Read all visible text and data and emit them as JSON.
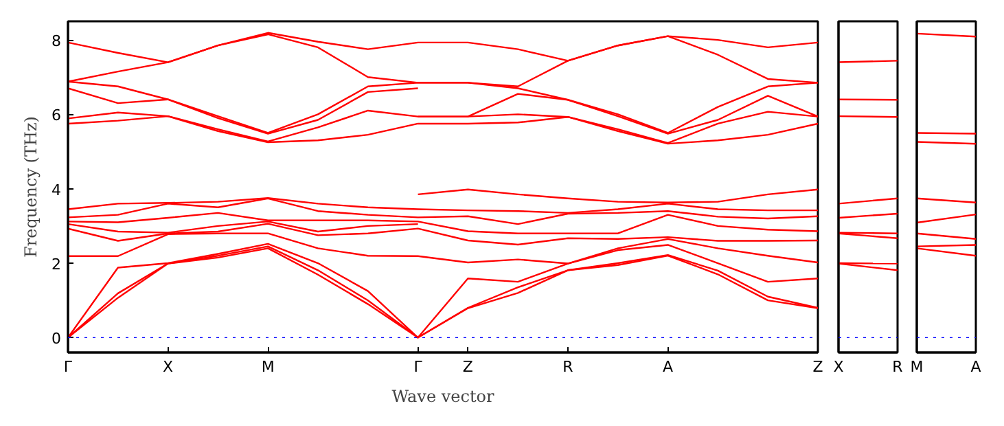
{
  "chart_data": [
    {
      "type": "line",
      "xlabel": "Wave vector",
      "ylabel": "Frequency (THz)",
      "ylim": [
        -0.4,
        8.5
      ],
      "categories": [
        "Γ",
        null,
        "X",
        null,
        "M",
        null,
        null,
        "Γ",
        "Z",
        null,
        "R",
        null,
        "A",
        null,
        null,
        "Z"
      ],
      "yticks": [
        0,
        2,
        4,
        6,
        8
      ],
      "grid": false,
      "line_style": "solid",
      "ref_lines": [
        {
          "axis": "y",
          "value": 0,
          "color": "#0000ff",
          "line_style": "dotted"
        }
      ],
      "series": [
        {
          "color": "#ff0000",
          "values": [
            0,
            1.07,
            1.99,
            2.15,
            2.4,
            1.69,
            0.9,
            0,
            0.79,
            1.2,
            1.81,
            1.95,
            2.2,
            1.7,
            1.0,
            0.79
          ]
        },
        {
          "color": "#ff0000",
          "values": [
            0,
            1.19,
            1.99,
            2.2,
            2.45,
            1.81,
            1.0,
            0,
            0.8,
            1.35,
            1.81,
            2.0,
            2.22,
            1.8,
            1.1,
            0.8
          ]
        },
        {
          "color": "#ff0000",
          "values": [
            0,
            1.88,
            2.0,
            2.25,
            2.52,
            2.0,
            1.25,
            0,
            1.59,
            1.5,
            1.99,
            2.35,
            2.49,
            2.0,
            1.5,
            1.59
          ]
        },
        {
          "color": "#ff0000",
          "values": [
            2.19,
            2.19,
            2.78,
            2.8,
            2.8,
            2.4,
            2.2,
            2.19,
            2.02,
            2.1,
            1.99,
            2.4,
            2.65,
            2.4,
            2.2,
            2.02
          ]
        },
        {
          "color": "#ff0000",
          "values": [
            2.93,
            2.6,
            2.8,
            2.85,
            3.06,
            2.75,
            2.8,
            2.93,
            2.61,
            2.5,
            2.67,
            2.65,
            2.7,
            2.6,
            2.6,
            2.61
          ]
        },
        {
          "color": "#ff0000",
          "values": [
            3.05,
            2.85,
            2.82,
            3.0,
            3.12,
            2.85,
            3.0,
            3.05,
            null,
            null,
            null,
            null,
            null,
            null,
            null,
            null
          ]
        },
        {
          "color": "#ff0000",
          "values": [
            3.12,
            3.1,
            3.22,
            3.35,
            3.15,
            3.15,
            3.15,
            3.12,
            2.86,
            2.8,
            2.8,
            2.8,
            3.3,
            3.0,
            2.9,
            2.86
          ]
        },
        {
          "color": "#ff0000",
          "values": [
            3.23,
            3.3,
            3.6,
            3.5,
            3.74,
            3.4,
            3.3,
            3.23,
            3.26,
            3.05,
            3.33,
            3.35,
            3.4,
            3.25,
            3.2,
            3.26
          ]
        },
        {
          "color": "#ff0000",
          "values": [
            3.45,
            3.6,
            3.62,
            3.65,
            3.75,
            3.6,
            3.5,
            3.45,
            3.42,
            3.4,
            3.35,
            3.45,
            3.6,
            3.45,
            3.42,
            3.42
          ]
        },
        {
          "color": "#ff0000",
          "values": [
            null,
            null,
            null,
            null,
            null,
            null,
            null,
            3.85,
            3.98,
            3.85,
            3.74,
            3.65,
            3.63,
            3.65,
            3.85,
            3.98
          ]
        },
        {
          "color": "#ff0000",
          "values": [
            5.75,
            5.83,
            5.95,
            5.55,
            5.25,
            5.3,
            5.45,
            5.75,
            5.75,
            5.78,
            5.93,
            5.55,
            5.21,
            5.3,
            5.45,
            5.75
          ]
        },
        {
          "color": "#ff0000",
          "values": [
            5.89,
            6.05,
            5.95,
            5.6,
            5.27,
            5.65,
            6.1,
            5.94,
            5.94,
            6.0,
            5.93,
            5.6,
            5.23,
            5.75,
            6.07,
            5.94
          ]
        },
        {
          "color": "#ff0000",
          "values": [
            6.7,
            6.3,
            6.4,
            5.9,
            5.48,
            5.85,
            6.6,
            6.7,
            null,
            null,
            null,
            null,
            null,
            null,
            null,
            null
          ]
        },
        {
          "color": "#ff0000",
          "values": [
            null,
            null,
            null,
            null,
            null,
            null,
            null,
            5.94,
            5.94,
            6.55,
            6.39,
            5.95,
            5.48,
            5.85,
            6.5,
            5.94
          ]
        },
        {
          "color": "#ff0000",
          "values": [
            6.88,
            6.75,
            6.4,
            5.95,
            5.5,
            6.0,
            6.75,
            6.85,
            6.85,
            6.7,
            6.39,
            6.0,
            5.5,
            6.2,
            6.75,
            6.85
          ]
        },
        {
          "color": "#ff0000",
          "values": [
            6.88,
            7.15,
            7.4,
            7.85,
            8.15,
            7.8,
            7.0,
            6.85,
            6.85,
            6.75,
            7.44,
            7.85,
            8.1,
            7.6,
            6.95,
            6.85
          ]
        },
        {
          "color": "#ff0000",
          "values": [
            7.93,
            7.65,
            7.4,
            7.85,
            8.19,
            7.95,
            7.75,
            7.93,
            7.93,
            7.75,
            7.44,
            7.85,
            8.1,
            8.0,
            7.8,
            7.93
          ]
        }
      ]
    },
    {
      "type": "line",
      "ylim": [
        -0.4,
        8.5
      ],
      "categories": [
        "X",
        "R"
      ],
      "tick_labels": "x",
      "line_style": "solid",
      "ref_lines": [
        {
          "axis": "y",
          "value": 0,
          "color": "#0000ff",
          "line_style": "dotted"
        }
      ],
      "series": [
        {
          "color": "#ff0000",
          "values": [
            1.99,
            1.81
          ]
        },
        {
          "color": "#ff0000",
          "values": [
            2.0,
            1.99
          ]
        },
        {
          "color": "#ff0000",
          "values": [
            2.8,
            2.67
          ]
        },
        {
          "color": "#ff0000",
          "values": [
            2.82,
            2.8
          ]
        },
        {
          "color": "#ff0000",
          "values": [
            3.22,
            3.33
          ]
        },
        {
          "color": "#ff0000",
          "values": [
            3.6,
            3.74
          ]
        },
        {
          "color": "#ff0000",
          "values": [
            5.95,
            5.93
          ]
        },
        {
          "color": "#ff0000",
          "values": [
            6.4,
            6.39
          ]
        },
        {
          "color": "#ff0000",
          "values": [
            7.4,
            7.44
          ]
        }
      ]
    },
    {
      "type": "line",
      "ylim": [
        -0.4,
        8.5
      ],
      "categories": [
        "M",
        "A"
      ],
      "tick_labels": "x",
      "line_style": "solid",
      "ref_lines": [
        {
          "axis": "y",
          "value": 0,
          "color": "#0000ff",
          "line_style": "dotted"
        }
      ],
      "series": [
        {
          "color": "#ff0000",
          "values": [
            2.4,
            2.2
          ]
        },
        {
          "color": "#ff0000",
          "values": [
            2.45,
            2.49
          ]
        },
        {
          "color": "#ff0000",
          "values": [
            2.8,
            2.65
          ]
        },
        {
          "color": "#ff0000",
          "values": [
            3.09,
            3.31
          ]
        },
        {
          "color": "#ff0000",
          "values": [
            3.74,
            3.63
          ]
        },
        {
          "color": "#ff0000",
          "values": [
            5.26,
            5.21
          ]
        },
        {
          "color": "#ff0000",
          "values": [
            5.5,
            5.48
          ]
        },
        {
          "color": "#ff0000",
          "values": [
            8.17,
            8.09
          ]
        }
      ]
    }
  ]
}
